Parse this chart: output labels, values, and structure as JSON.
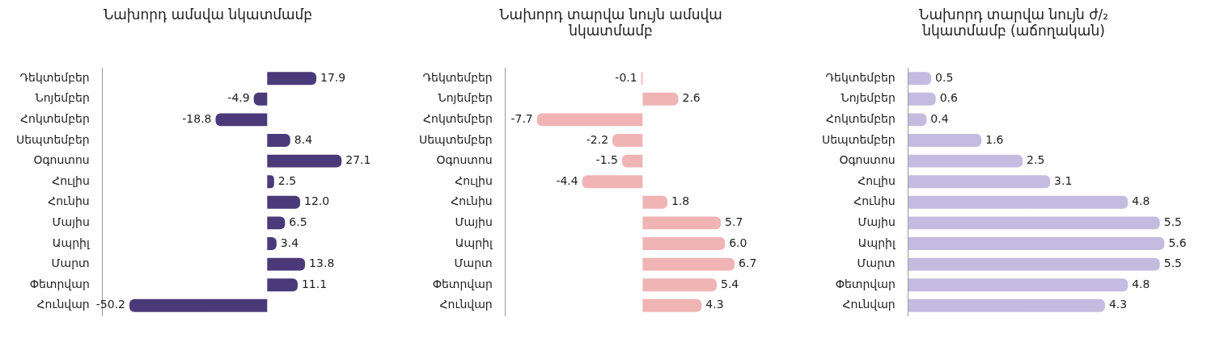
{
  "chart_data": [
    {
      "type": "bar",
      "orientation": "horizontal",
      "title": "Նախորդ ամսվա նկատմամբ",
      "categories": [
        "Դեկտեմբեր",
        "Նոյեմբեր",
        "Հոկտեմբեր",
        "Սեպտեմբեր",
        "Օգոստոս",
        "Հուլիս",
        "Հունիս",
        "Մայիս",
        "Ապրիլ",
        "Մարտ",
        "Փետրվար",
        "Հունվար"
      ],
      "values": [
        17.9,
        -4.9,
        -18.8,
        8.4,
        27.1,
        2.5,
        12.0,
        6.5,
        3.4,
        13.8,
        11.1,
        -50.2
      ],
      "value_labels": [
        "17.9",
        "-4.9",
        "-18.8",
        "8.4",
        "27.1",
        "2.5",
        "12.0",
        "6.5",
        "3.4",
        "13.8",
        "11.1",
        "-50.2"
      ],
      "color": "#4b3a7a",
      "tick_labels": "y",
      "grid": false
    },
    {
      "type": "bar",
      "orientation": "horizontal",
      "title": "Նախորդ տարվա նույն ամսվա նկատմամբ",
      "categories": [
        "Դեկտեմբեր",
        "Նոյեմբեր",
        "Հոկտեմբեր",
        "Սեպտեմբեր",
        "Օգոստոս",
        "Հուլիս",
        "Հունիս",
        "Մայիս",
        "Ապրիլ",
        "Մարտ",
        "Փետրվար",
        "Հունվար"
      ],
      "values": [
        -0.1,
        2.6,
        -7.7,
        -2.2,
        -1.5,
        -4.4,
        1.8,
        5.7,
        6.0,
        6.7,
        5.4,
        4.3
      ],
      "value_labels": [
        "-0.1",
        "2.6",
        "-7.7",
        "-2.2",
        "-1.5",
        "-4.4",
        "1.8",
        "5.7",
        "6.0",
        "6.7",
        "5.4",
        "4.3"
      ],
      "color": "#f0b4b4",
      "tick_labels": "y",
      "grid": false
    },
    {
      "type": "bar",
      "orientation": "horizontal",
      "title": "Նախորդ տարվա նույն ժ/₂ նկատմամբ (աճողական)",
      "categories": [
        "Դեկտեմբեր",
        "Նոյեմբեր",
        "Հոկտեմբեր",
        "Սեպտեմբեր",
        "Օգոստոս",
        "Հուլիս",
        "Հունիս",
        "Մայիս",
        "Ապրիլ",
        "Մարտ",
        "Փետրվար",
        "Հունվար"
      ],
      "values": [
        0.5,
        0.6,
        0.4,
        1.6,
        2.5,
        3.1,
        4.8,
        5.5,
        5.6,
        5.5,
        4.8,
        4.3
      ],
      "value_labels": [
        "0.5",
        "0.6",
        "0.4",
        "1.6",
        "2.5",
        "3.1",
        "4.8",
        "5.5",
        "5.6",
        "5.5",
        "4.8",
        "4.3"
      ],
      "color": "#c4bbe0",
      "tick_labels": "y",
      "grid": false
    }
  ]
}
